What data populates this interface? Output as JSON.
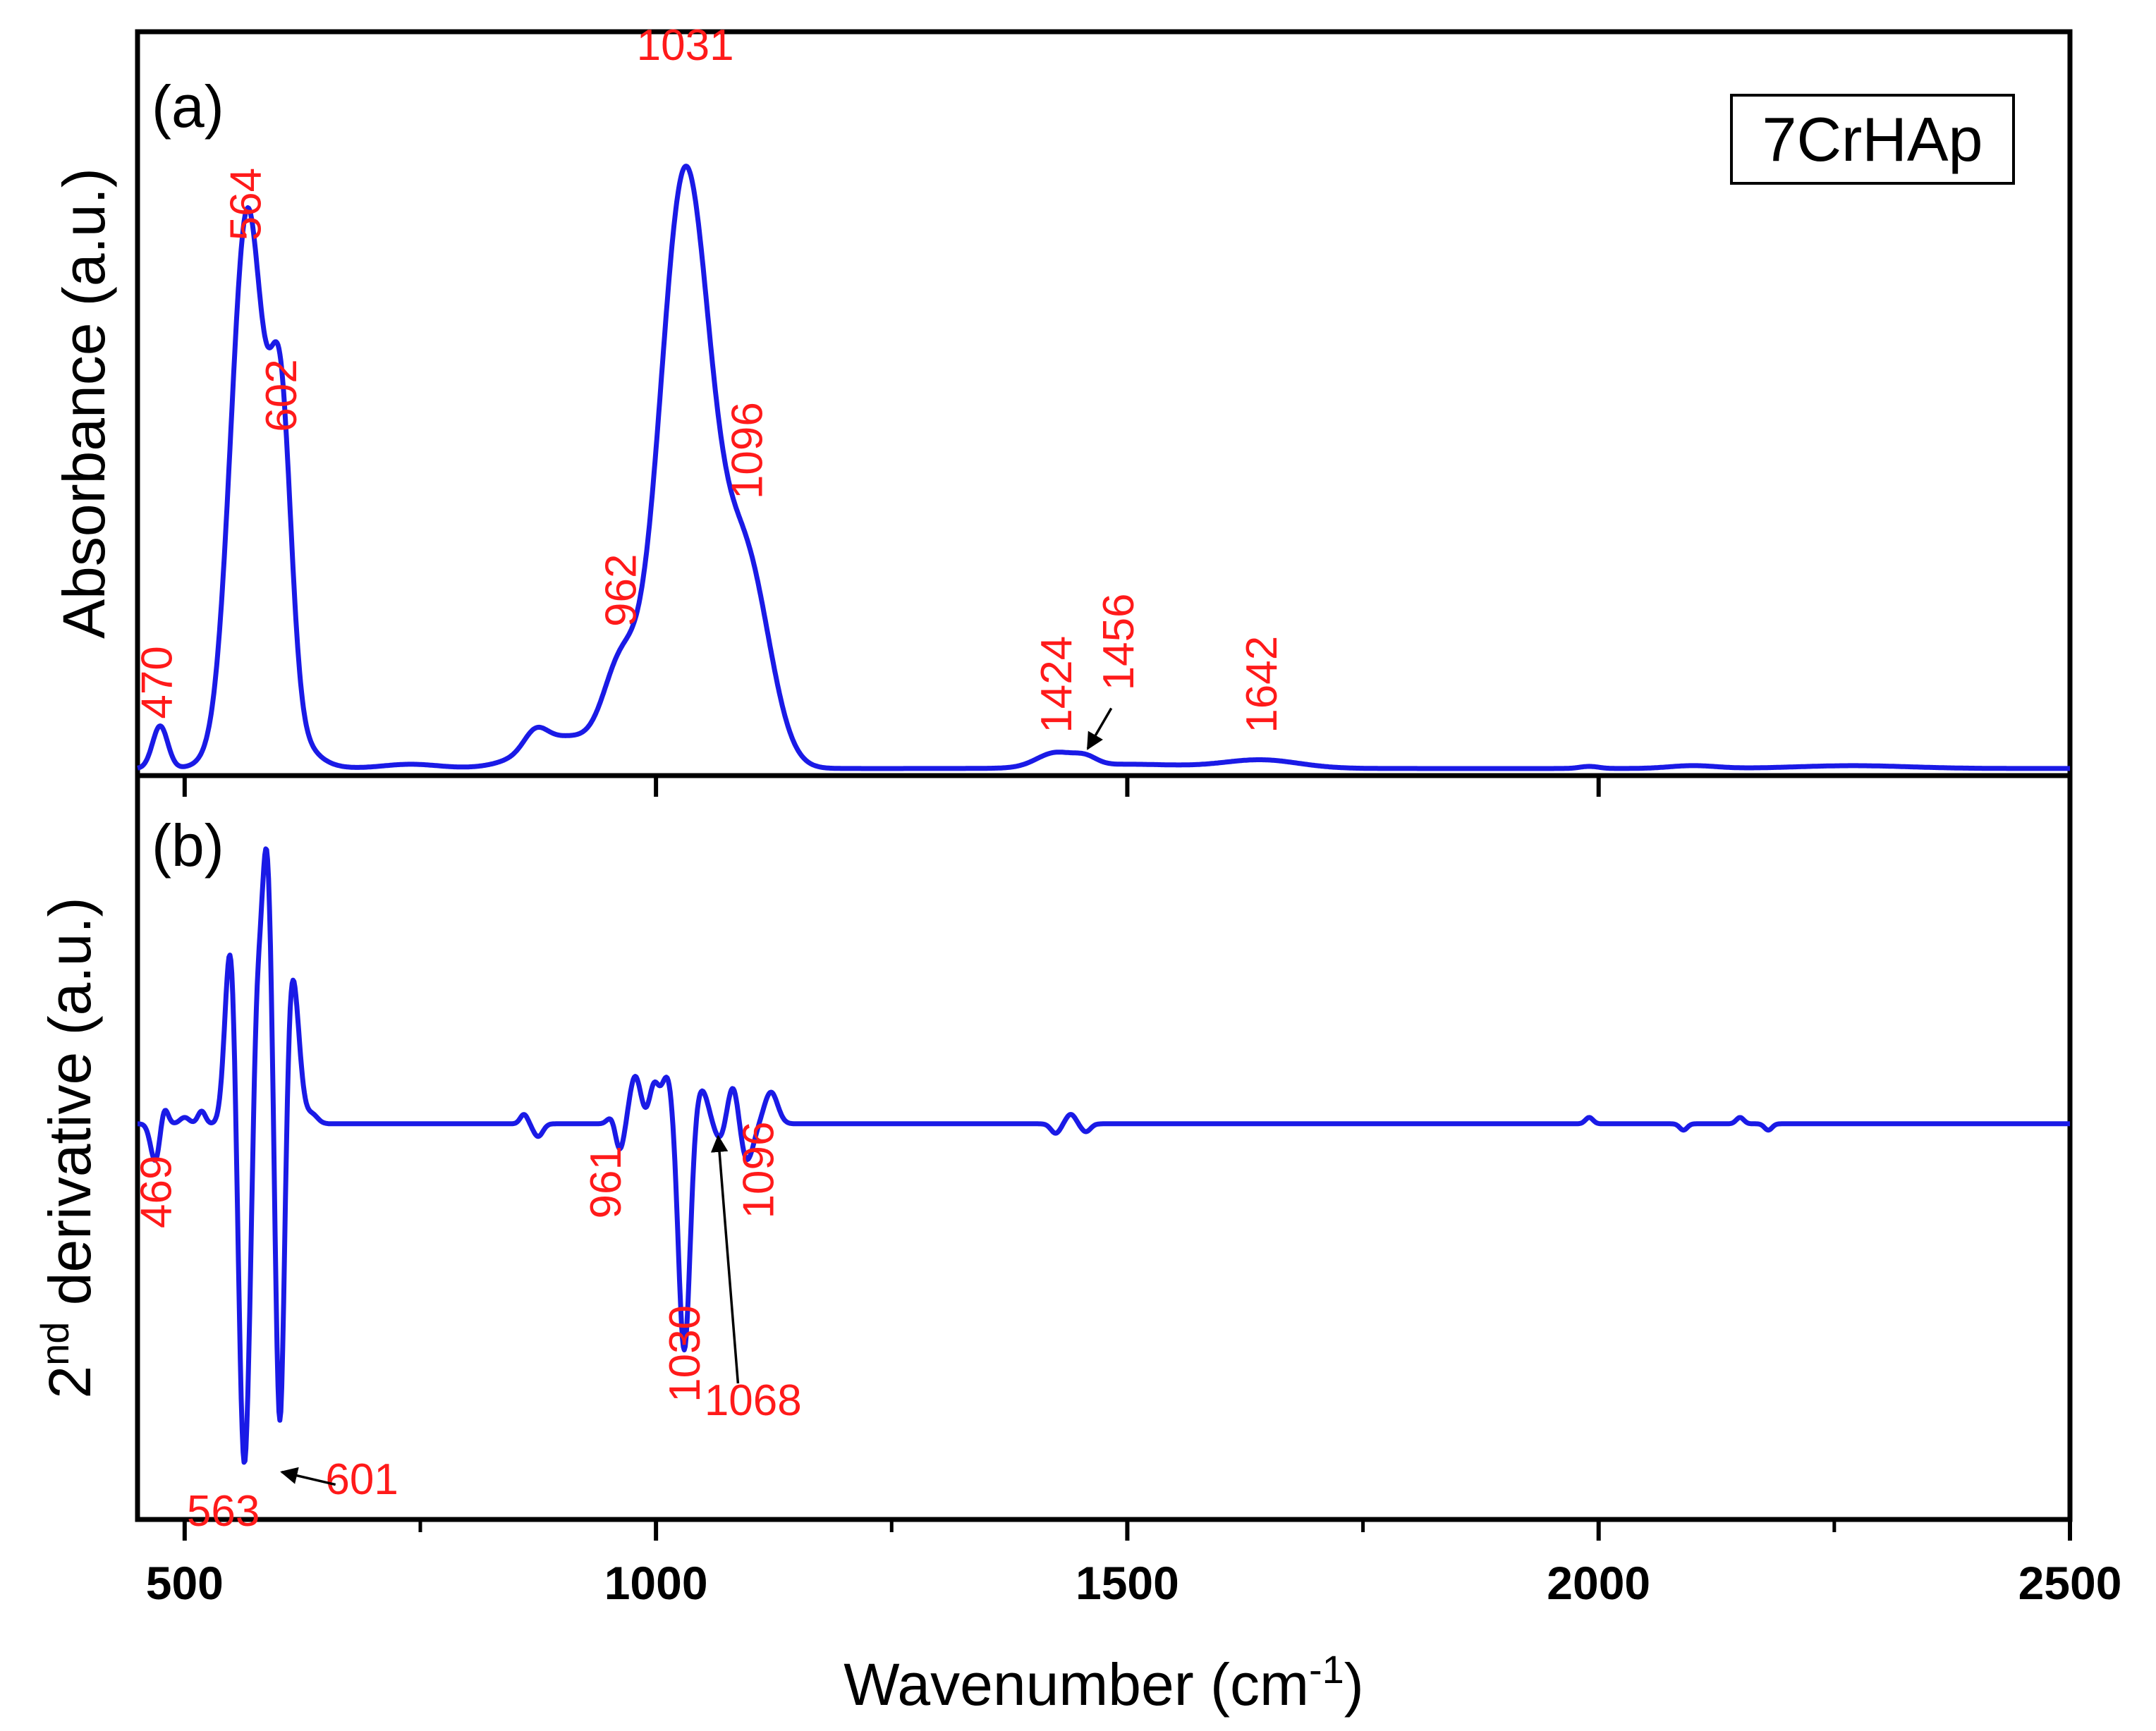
{
  "chart_data": {
    "type": "line",
    "sample_label": "7CrHAp",
    "xlabel": "Wavenumber (cm",
    "xlabel_sup": "-1",
    "xlabel_tail": ")",
    "xlim": [
      450,
      2500
    ],
    "x_ticks": [
      500,
      1000,
      1500,
      2000,
      2500
    ],
    "x_minor_ticks": [
      750,
      1250,
      1750,
      2250
    ],
    "line_color": "#1a1ae6",
    "label_color": "#ff1a1a",
    "panels": [
      {
        "tag": "(a)",
        "ylabel": "Absorbance (a.u.)",
        "ylim": [
          0,
          1.05
        ],
        "series": [
          {
            "name": "Absorbance",
            "kind": "gaussian_sum",
            "baseline": 0.01,
            "components": [
              {
                "center": 474,
                "height": 0.06,
                "width": 8
              },
              {
                "center": 566,
                "height": 0.69,
                "width": 17
              },
              {
                "center": 602,
                "height": 0.4,
                "width": 11
              },
              {
                "center": 585,
                "height": 0.12,
                "width": 30
              },
              {
                "center": 740,
                "height": 0.006,
                "width": 30
              },
              {
                "center": 872,
                "height": 0.025,
                "width": 12
              },
              {
                "center": 905,
                "height": 0.045,
                "width": 40
              },
              {
                "center": 962,
                "height": 0.12,
                "width": 18
              },
              {
                "center": 1031,
                "height": 0.84,
                "width": 27
              },
              {
                "center": 1096,
                "height": 0.28,
                "width": 25
              },
              {
                "center": 1424,
                "height": 0.02,
                "width": 20
              },
              {
                "center": 1456,
                "height": 0.01,
                "width": 12
              },
              {
                "center": 1500,
                "height": 0.006,
                "width": 60
              },
              {
                "center": 1642,
                "height": 0.012,
                "width": 40
              },
              {
                "center": 1990,
                "height": 0.003,
                "width": 10
              },
              {
                "center": 2100,
                "height": 0.004,
                "width": 25
              },
              {
                "center": 2270,
                "height": 0.004,
                "width": 60
              }
            ]
          }
        ],
        "annotations": [
          {
            "text": "470",
            "x": 470,
            "y": 0.08,
            "rotate": true
          },
          {
            "text": "564",
            "x": 564,
            "y": 0.755,
            "rotate": true
          },
          {
            "text": "602",
            "x": 602,
            "y": 0.485,
            "rotate": true
          },
          {
            "text": "962",
            "x": 962,
            "y": 0.21,
            "rotate": true
          },
          {
            "text": "1031",
            "x": 1031,
            "y": 1.01,
            "rotate": false
          },
          {
            "text": "1096",
            "x": 1096,
            "y": 0.39,
            "rotate": true
          },
          {
            "text": "1424",
            "x": 1424,
            "y": 0.06,
            "rotate": true
          },
          {
            "text": "1456",
            "x": 1490,
            "y": 0.12,
            "rotate": true
          },
          {
            "text": "1642",
            "x": 1642,
            "y": 0.06,
            "rotate": true
          }
        ],
        "arrows": [
          {
            "from_x": 1483,
            "from_y": 0.095,
            "to_x": 1458,
            "to_y": 0.038
          }
        ]
      },
      {
        "tag": "(b)",
        "ylabel_pre": "2",
        "ylabel_sup": "nd",
        "ylabel_post": " derivative (a.u.)",
        "ylim": [
          -1.25,
          1.1
        ],
        "series": [
          {
            "name": "2nd derivative",
            "kind": "gaussian_sum",
            "baseline": 0.0,
            "components": [
              {
                "center": 469,
                "height": -0.12,
                "width": 5
              },
              {
                "center": 478,
                "height": 0.06,
                "width": 4
              },
              {
                "center": 500,
                "height": 0.02,
                "width": 5
              },
              {
                "center": 518,
                "height": 0.04,
                "width": 4
              },
              {
                "center": 549,
                "height": 0.59,
                "width": 6
              },
              {
                "center": 563,
                "height": -1.11,
                "width": 6
              },
              {
                "center": 576,
                "height": 0.3,
                "width": 4
              },
              {
                "center": 587,
                "height": 0.88,
                "width": 6
              },
              {
                "center": 601,
                "height": -1.08,
                "width": 5
              },
              {
                "center": 614,
                "height": 0.48,
                "width": 7
              },
              {
                "center": 635,
                "height": 0.03,
                "width": 6
              },
              {
                "center": 860,
                "height": 0.03,
                "width": 4
              },
              {
                "center": 875,
                "height": -0.04,
                "width": 5
              },
              {
                "center": 955,
                "height": 0.04,
                "width": 5
              },
              {
                "center": 961,
                "height": -0.1,
                "width": 5
              },
              {
                "center": 978,
                "height": 0.15,
                "width": 6
              },
              {
                "center": 998,
                "height": 0.12,
                "width": 5
              },
              {
                "center": 1012,
                "height": 0.15,
                "width": 6
              },
              {
                "center": 1030,
                "height": -0.72,
                "width": 6
              },
              {
                "center": 1048,
                "height": 0.11,
                "width": 7
              },
              {
                "center": 1068,
                "height": -0.05,
                "width": 6
              },
              {
                "center": 1082,
                "height": 0.13,
                "width": 6
              },
              {
                "center": 1096,
                "height": -0.12,
                "width": 7
              },
              {
                "center": 1122,
                "height": 0.1,
                "width": 7
              },
              {
                "center": 1424,
                "height": -0.03,
                "width": 5
              },
              {
                "center": 1440,
                "height": 0.03,
                "width": 5
              },
              {
                "center": 1456,
                "height": -0.025,
                "width": 5
              },
              {
                "center": 1990,
                "height": 0.02,
                "width": 4
              },
              {
                "center": 2090,
                "height": -0.02,
                "width": 4
              },
              {
                "center": 2150,
                "height": 0.02,
                "width": 4
              },
              {
                "center": 2180,
                "height": -0.02,
                "width": 4
              }
            ]
          }
        ],
        "annotations": [
          {
            "text": "469",
            "x": 469,
            "y": -0.33,
            "rotate": true
          },
          {
            "text": "563",
            "x": 541,
            "y": -1.27,
            "rotate": false
          },
          {
            "text": "601",
            "x": 688,
            "y": -1.17,
            "rotate": false
          },
          {
            "text": "961",
            "x": 946,
            "y": -0.3,
            "rotate": true
          },
          {
            "text": "1030",
            "x": 1030,
            "y": -0.88,
            "rotate": true
          },
          {
            "text": "1068",
            "x": 1103,
            "y": -0.92,
            "rotate": false
          },
          {
            "text": "1096",
            "x": 1108,
            "y": -0.3,
            "rotate": true
          }
        ],
        "arrows": [
          {
            "from_x": 660,
            "from_y": -1.14,
            "to_x": 603,
            "to_y": -1.1
          },
          {
            "from_x": 1087,
            "from_y": -0.82,
            "to_x": 1066,
            "to_y": -0.04
          }
        ]
      }
    ]
  }
}
